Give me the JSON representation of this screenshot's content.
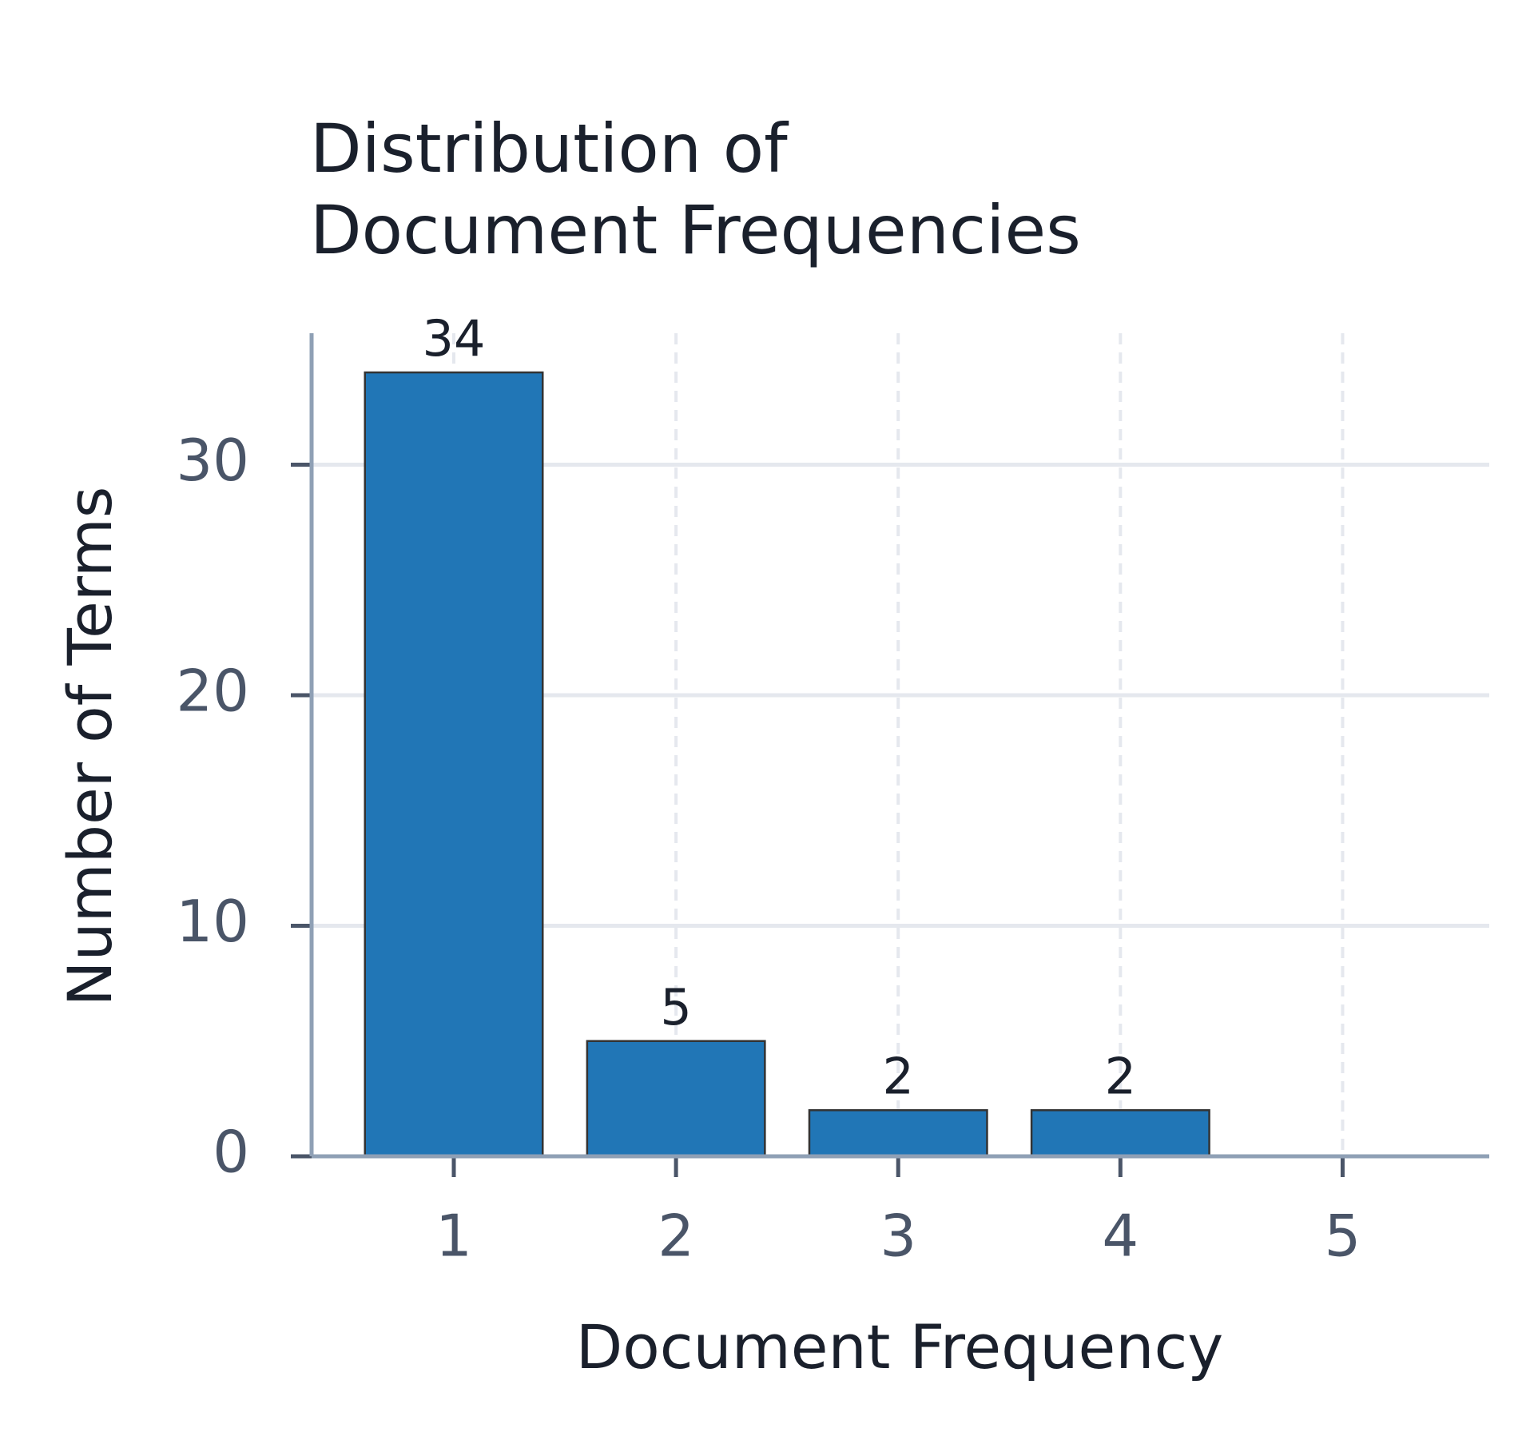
{
  "chart_data": {
    "type": "bar",
    "title": "Distribution of Document Frequencies",
    "x_label": "Document Frequency",
    "y_label": "Number of Terms",
    "x": [
      1,
      2,
      3,
      4
    ],
    "values": [
      34,
      5,
      2,
      2
    ],
    "color": "#2176b6",
    "xlim": [
      0.36,
      5.66
    ],
    "xticks": [
      1,
      2,
      3,
      4,
      5
    ],
    "ylim": [
      0,
      35.7
    ],
    "yticks": [
      0,
      10,
      20,
      30
    ],
    "grid": true
  }
}
